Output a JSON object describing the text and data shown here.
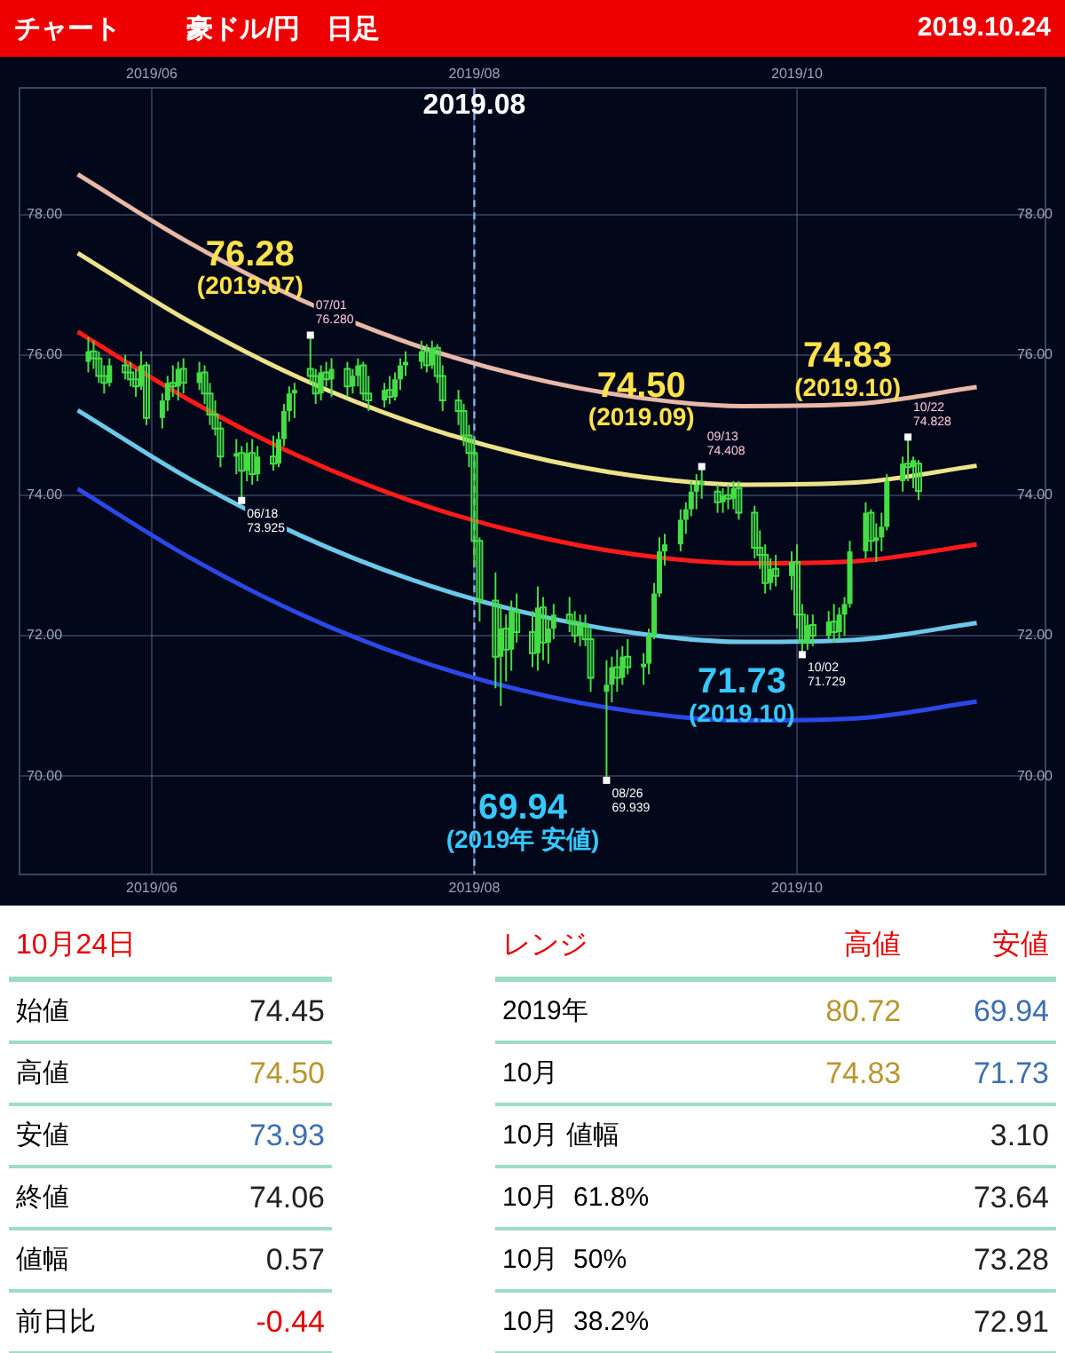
{
  "chart_data": [
    {
      "type": "candlestick",
      "title": "チャート",
      "subtitle": "豪ドル/円　日足",
      "color": "#44dd44",
      "x": [
        "2019-05-20",
        "2019-05-21",
        "2019-05-22",
        "2019-05-23",
        "2019-05-24",
        "2019-05-27",
        "2019-05-28",
        "2019-05-29",
        "2019-05-30",
        "2019-05-31",
        "2019-06-03",
        "2019-06-04",
        "2019-06-05",
        "2019-06-06",
        "2019-06-07",
        "2019-06-10",
        "2019-06-11",
        "2019-06-12",
        "2019-06-13",
        "2019-06-14",
        "2019-06-17",
        "2019-06-18",
        "2019-06-19",
        "2019-06-20",
        "2019-06-21",
        "2019-06-24",
        "2019-06-25",
        "2019-06-26",
        "2019-06-27",
        "2019-06-28",
        "2019-07-01",
        "2019-07-02",
        "2019-07-03",
        "2019-07-04",
        "2019-07-05",
        "2019-07-08",
        "2019-07-09",
        "2019-07-10",
        "2019-07-11",
        "2019-07-12",
        "2019-07-15",
        "2019-07-16",
        "2019-07-17",
        "2019-07-18",
        "2019-07-19",
        "2019-07-22",
        "2019-07-23",
        "2019-07-24",
        "2019-07-25",
        "2019-07-26",
        "2019-07-29",
        "2019-07-30",
        "2019-07-31",
        "2019-08-01",
        "2019-08-02",
        "2019-08-05",
        "2019-08-06",
        "2019-08-07",
        "2019-08-08",
        "2019-08-09",
        "2019-08-12",
        "2019-08-13",
        "2019-08-14",
        "2019-08-15",
        "2019-08-16",
        "2019-08-19",
        "2019-08-20",
        "2019-08-21",
        "2019-08-22",
        "2019-08-23",
        "2019-08-26",
        "2019-08-27",
        "2019-08-28",
        "2019-08-29",
        "2019-08-30",
        "2019-09-02",
        "2019-09-03",
        "2019-09-04",
        "2019-09-05",
        "2019-09-06",
        "2019-09-09",
        "2019-09-10",
        "2019-09-11",
        "2019-09-12",
        "2019-09-13",
        "2019-09-16",
        "2019-09-17",
        "2019-09-18",
        "2019-09-19",
        "2019-09-20",
        "2019-09-23",
        "2019-09-24",
        "2019-09-25",
        "2019-09-26",
        "2019-09-27",
        "2019-09-30",
        "2019-10-01",
        "2019-10-02",
        "2019-10-03",
        "2019-10-04",
        "2019-10-07",
        "2019-10-08",
        "2019-10-09",
        "2019-10-10",
        "2019-10-11",
        "2019-10-14",
        "2019-10-15",
        "2019-10-16",
        "2019-10-17",
        "2019-10-18",
        "2019-10-21",
        "2019-10-22",
        "2019-10-23",
        "2019-10-24"
      ],
      "ohlc": [
        [
          75.9,
          76.25,
          75.75,
          76.05
        ],
        [
          76.05,
          76.2,
          75.8,
          75.95
        ],
        [
          75.95,
          76.05,
          75.6,
          75.7
        ],
        [
          75.7,
          75.85,
          75.45,
          75.6
        ],
        [
          75.6,
          75.95,
          75.55,
          75.85
        ],
        [
          75.85,
          76.0,
          75.65,
          75.75
        ],
        [
          75.75,
          75.9,
          75.55,
          75.65
        ],
        [
          75.65,
          75.8,
          75.4,
          75.55
        ],
        [
          75.55,
          76.05,
          75.5,
          75.85
        ],
        [
          75.85,
          75.9,
          75.0,
          75.1
        ],
        [
          75.1,
          75.45,
          74.95,
          75.35
        ],
        [
          75.35,
          75.7,
          75.2,
          75.6
        ],
        [
          75.6,
          75.85,
          75.4,
          75.55
        ],
        [
          75.55,
          75.9,
          75.35,
          75.8
        ],
        [
          75.8,
          75.95,
          75.45,
          75.6
        ],
        [
          75.6,
          75.9,
          75.5,
          75.75
        ],
        [
          75.75,
          75.85,
          75.3,
          75.45
        ],
        [
          75.45,
          75.6,
          75.0,
          75.15
        ],
        [
          75.15,
          75.35,
          74.85,
          74.95
        ],
        [
          74.95,
          75.05,
          74.4,
          74.55
        ],
        [
          74.55,
          74.8,
          74.3,
          74.6
        ],
        [
          74.6,
          74.7,
          73.925,
          74.35
        ],
        [
          74.35,
          74.75,
          74.2,
          74.6
        ],
        [
          74.6,
          74.8,
          74.15,
          74.3
        ],
        [
          74.3,
          74.7,
          74.2,
          74.55
        ],
        [
          74.55,
          74.85,
          74.35,
          74.45
        ],
        [
          74.45,
          74.9,
          74.4,
          74.8
        ],
        [
          74.8,
          75.3,
          74.7,
          75.2
        ],
        [
          75.2,
          75.55,
          75.05,
          75.45
        ],
        [
          75.45,
          75.6,
          75.1,
          75.5
        ],
        [
          75.8,
          76.28,
          75.6,
          75.7
        ],
        [
          75.7,
          75.8,
          75.3,
          75.45
        ],
        [
          75.45,
          75.85,
          75.35,
          75.75
        ],
        [
          75.75,
          75.9,
          75.55,
          75.65
        ],
        [
          75.65,
          75.95,
          75.4,
          75.8
        ],
        [
          75.8,
          75.9,
          75.4,
          75.55
        ],
        [
          75.55,
          75.8,
          75.45,
          75.7
        ],
        [
          75.7,
          75.95,
          75.55,
          75.85
        ],
        [
          75.85,
          75.9,
          75.35,
          75.45
        ],
        [
          75.45,
          75.7,
          75.2,
          75.35
        ],
        [
          75.35,
          75.6,
          75.25,
          75.5
        ],
        [
          75.5,
          75.7,
          75.3,
          75.4
        ],
        [
          75.4,
          75.75,
          75.35,
          75.65
        ],
        [
          75.65,
          75.95,
          75.5,
          75.85
        ],
        [
          75.85,
          76.05,
          75.7,
          75.9
        ],
        [
          75.9,
          76.2,
          75.8,
          76.05
        ],
        [
          76.05,
          76.15,
          75.75,
          75.85
        ],
        [
          75.85,
          76.2,
          75.8,
          76.1
        ],
        [
          76.1,
          76.15,
          75.6,
          75.7
        ],
        [
          75.7,
          75.85,
          75.2,
          75.35
        ],
        [
          75.35,
          75.5,
          75.0,
          75.2
        ],
        [
          75.2,
          75.3,
          74.7,
          74.85
        ],
        [
          74.85,
          75.0,
          74.4,
          74.6
        ],
        [
          74.6,
          74.8,
          73.0,
          73.35
        ],
        [
          73.35,
          73.4,
          72.2,
          72.5
        ],
        [
          72.5,
          72.9,
          71.25,
          71.7
        ],
        [
          71.7,
          72.45,
          71.0,
          72.1
        ],
        [
          72.1,
          72.3,
          71.35,
          71.8
        ],
        [
          71.8,
          72.5,
          71.5,
          72.35
        ],
        [
          72.35,
          72.6,
          71.9,
          72.05
        ],
        [
          72.05,
          72.35,
          71.55,
          71.75
        ],
        [
          71.75,
          72.7,
          71.5,
          72.4
        ],
        [
          72.4,
          72.55,
          71.65,
          71.9
        ],
        [
          71.9,
          72.25,
          71.6,
          72.1
        ],
        [
          72.1,
          72.45,
          71.95,
          72.3
        ],
        [
          72.3,
          72.55,
          72.05,
          72.2
        ],
        [
          72.2,
          72.35,
          71.9,
          72.0
        ],
        [
          72.0,
          72.3,
          71.85,
          72.15
        ],
        [
          72.15,
          72.3,
          71.85,
          71.95
        ],
        [
          71.95,
          72.1,
          71.2,
          71.4
        ],
        [
          71.2,
          71.65,
          69.939,
          71.3
        ],
        [
          71.3,
          71.7,
          71.05,
          71.55
        ],
        [
          71.55,
          71.8,
          71.2,
          71.4
        ],
        [
          71.4,
          71.85,
          71.3,
          71.7
        ],
        [
          71.7,
          71.95,
          71.45,
          71.55
        ],
        [
          71.55,
          71.75,
          71.3,
          71.6
        ],
        [
          71.6,
          72.1,
          71.45,
          72.0
        ],
        [
          72.0,
          72.75,
          71.95,
          72.6
        ],
        [
          72.6,
          73.4,
          72.55,
          73.2
        ],
        [
          73.2,
          73.45,
          73.0,
          73.3
        ],
        [
          73.3,
          73.8,
          73.2,
          73.65
        ],
        [
          73.65,
          73.9,
          73.45,
          73.8
        ],
        [
          73.8,
          74.2,
          73.7,
          74.05
        ],
        [
          74.05,
          74.3,
          73.8,
          74.15
        ],
        [
          74.15,
          74.408,
          73.95,
          74.2
        ],
        [
          74.05,
          74.15,
          73.75,
          73.9
        ],
        [
          73.9,
          74.1,
          73.75,
          74.0
        ],
        [
          74.0,
          74.15,
          73.8,
          73.95
        ],
        [
          73.95,
          74.2,
          73.8,
          74.1
        ],
        [
          74.1,
          74.2,
          73.65,
          73.75
        ],
        [
          73.75,
          73.85,
          73.1,
          73.25
        ],
        [
          73.25,
          73.5,
          72.95,
          73.15
        ],
        [
          73.15,
          73.3,
          72.6,
          72.75
        ],
        [
          72.75,
          73.1,
          72.65,
          72.95
        ],
        [
          72.95,
          73.15,
          72.7,
          72.85
        ],
        [
          72.85,
          73.2,
          72.65,
          73.05
        ],
        [
          73.05,
          73.3,
          72.1,
          72.3
        ],
        [
          72.3,
          72.45,
          71.729,
          71.9
        ],
        [
          71.9,
          72.3,
          71.8,
          72.15
        ],
        [
          72.15,
          72.3,
          71.85,
          72.0
        ],
        [
          72.0,
          72.35,
          71.95,
          72.2
        ],
        [
          72.2,
          72.45,
          71.9,
          72.05
        ],
        [
          72.05,
          72.4,
          71.95,
          72.3
        ],
        [
          72.3,
          72.55,
          72.0,
          72.45
        ],
        [
          72.45,
          73.35,
          72.4,
          73.2
        ],
        [
          73.2,
          73.9,
          73.1,
          73.75
        ],
        [
          73.75,
          73.8,
          73.2,
          73.35
        ],
        [
          73.35,
          73.6,
          73.05,
          73.4
        ],
        [
          73.4,
          73.75,
          73.2,
          73.55
        ],
        [
          73.55,
          74.3,
          73.5,
          74.2
        ],
        [
          74.2,
          74.55,
          74.05,
          74.45
        ],
        [
          74.45,
          74.828,
          74.2,
          74.4
        ],
        [
          74.4,
          74.55,
          74.1,
          74.5
        ],
        [
          74.45,
          74.5,
          73.93,
          74.06
        ]
      ],
      "series": [
        {
          "type": "line",
          "color": "#e8b8a8",
          "x": [
            "2019-05-18",
            "2019-06-08",
            "2019-06-29",
            "2019-07-20",
            "2019-08-10",
            "2019-08-31",
            "2019-09-21",
            "2019-10-12",
            "2019-11-04"
          ],
          "values": [
            78.57,
            77.6,
            76.79,
            76.16,
            75.7,
            75.4,
            75.27,
            75.3,
            75.54
          ]
        },
        {
          "type": "line",
          "color": "#ece28a",
          "x": [
            "2019-05-18",
            "2019-06-08",
            "2019-06-29",
            "2019-07-20",
            "2019-08-10",
            "2019-08-31",
            "2019-09-21",
            "2019-10-12",
            "2019-11-04"
          ],
          "values": [
            77.45,
            76.48,
            75.67,
            75.04,
            74.58,
            74.28,
            74.15,
            74.18,
            74.42
          ]
        },
        {
          "type": "line",
          "color": "#ff1a1a",
          "x": [
            "2019-05-18",
            "2019-06-08",
            "2019-06-29",
            "2019-07-20",
            "2019-08-10",
            "2019-08-31",
            "2019-09-21",
            "2019-10-12",
            "2019-11-04"
          ],
          "values": [
            76.33,
            75.36,
            74.55,
            73.92,
            73.46,
            73.16,
            73.03,
            73.06,
            73.3
          ]
        },
        {
          "type": "line",
          "color": "#6cc8e8",
          "x": [
            "2019-05-18",
            "2019-06-08",
            "2019-06-29",
            "2019-07-20",
            "2019-08-10",
            "2019-08-31",
            "2019-09-21",
            "2019-10-12",
            "2019-11-04"
          ],
          "values": [
            75.21,
            74.24,
            73.43,
            72.8,
            72.34,
            72.04,
            71.91,
            71.94,
            72.18
          ]
        },
        {
          "type": "line",
          "color": "#2a48e8",
          "x": [
            "2019-05-18",
            "2019-06-08",
            "2019-06-29",
            "2019-07-20",
            "2019-08-10",
            "2019-08-31",
            "2019-09-21",
            "2019-10-12",
            "2019-11-04"
          ],
          "values": [
            74.09,
            73.12,
            72.31,
            71.68,
            71.22,
            70.92,
            70.79,
            70.82,
            71.06
          ]
        }
      ],
      "xlim": [
        "2019-05-07",
        "2019-11-17"
      ],
      "xticks": [
        {
          "value": "2019-06-01",
          "label": "2019/06"
        },
        {
          "value": "2019-08-01",
          "label": "2019/08"
        },
        {
          "value": "2019-10-01",
          "label": "2019/10"
        }
      ],
      "x2lim": [
        "2019-05-07",
        "2019-11-17"
      ],
      "x2ticks": [
        {
          "value": "2019-06-01",
          "label": "2019/06"
        },
        {
          "value": "2019-08-01",
          "label": "2019/08"
        },
        {
          "value": "2019-10-01",
          "label": "2019/10"
        }
      ],
      "ylim": [
        68.6,
        79.8
      ],
      "yticks": [
        {
          "value": 70,
          "label": "70.00"
        },
        {
          "value": 72,
          "label": "72.00"
        },
        {
          "value": 74,
          "label": "74.00"
        },
        {
          "value": 76,
          "label": "76.00"
        },
        {
          "value": 78,
          "label": "78.00"
        }
      ],
      "y2lim": [
        68.6,
        79.8
      ],
      "y2ticks": [
        {
          "value": 70,
          "label": "70.00"
        },
        {
          "value": 72,
          "label": "72.00"
        },
        {
          "value": 74,
          "label": "74.00"
        },
        {
          "value": 76,
          "label": "76.00"
        },
        {
          "value": 78,
          "label": "78.00"
        }
      ],
      "grid": true,
      "ref_lines": [
        {
          "axis": "x",
          "value": "2019-08-01",
          "label": "2019.08",
          "color": "#7fb2e5",
          "line_style": "dashed"
        }
      ],
      "annotations": [
        "2019.10.24",
        {
          "text": "07/01 76.280",
          "x": "2019-07-01",
          "y": 76.28
        },
        {
          "text": "76.28 (2019.07)",
          "x": "2019-07-01",
          "y": 76.28
        },
        {
          "text": "06/18 73.925",
          "x": "2019-06-18",
          "y": 73.925
        },
        {
          "text": "09/13 74.408",
          "x": "2019-09-13",
          "y": 74.408
        },
        {
          "text": "74.50 (2019.09)",
          "x": "2019-09-13",
          "y": 74.408
        },
        {
          "text": "10/22 74.828",
          "x": "2019-10-22",
          "y": 74.828
        },
        {
          "text": "74.83 (2019.10)",
          "x": "2019-10-22",
          "y": 74.828
        },
        {
          "text": "08/26 69.939",
          "x": "2019-08-26",
          "y": 69.939
        },
        {
          "text": "69.94 (2019年 安値)",
          "x": "2019-08-26",
          "y": 69.939
        },
        {
          "text": "10/02 71.729",
          "x": "2019-10-02",
          "y": 71.729
        },
        {
          "text": "71.73 (2019.10)",
          "x": "2019-10-02",
          "y": 71.729
        }
      ]
    },
    {
      "type": "other",
      "title": "10月24日",
      "categories": [
        "始値",
        "高値",
        "安値",
        "終値",
        "値幅",
        "前日比"
      ],
      "series": [
        {
          "colors": [
            "#222222",
            "#b8962e",
            "#3d6fb0",
            "#222222",
            "#222222",
            "#e60000"
          ],
          "values": [
            74.45,
            74.5,
            73.93,
            74.06,
            0.57,
            -0.44
          ],
          "value_labels": [
            "74.45",
            "74.50",
            "73.93",
            "74.06",
            "0.57",
            "-0.44"
          ]
        }
      ]
    },
    {
      "type": "other",
      "title": "レンジ",
      "categories": [
        "2019年",
        "10月",
        "10月 値幅",
        "10月  61.8%",
        "10月  50%",
        "10月  38.2%"
      ],
      "series": [
        {
          "name": "高値",
          "colors": [
            "#b8962e",
            "#b8962e",
            null,
            null,
            null,
            null
          ],
          "values": [
            80.72,
            74.83,
            null,
            null,
            null,
            null
          ],
          "value_labels": [
            "80.72",
            "74.83",
            null,
            null,
            null,
            null
          ]
        },
        {
          "name": "安値",
          "colors": [
            "#3d6fb0",
            "#3d6fb0",
            "#222222",
            "#222222",
            "#222222",
            "#222222"
          ],
          "values": [
            69.94,
            71.73,
            3.1,
            73.64,
            73.28,
            72.91
          ],
          "value_labels": [
            "69.94",
            "71.73",
            "3.10",
            "73.64",
            "73.28",
            "72.91"
          ]
        }
      ]
    }
  ]
}
